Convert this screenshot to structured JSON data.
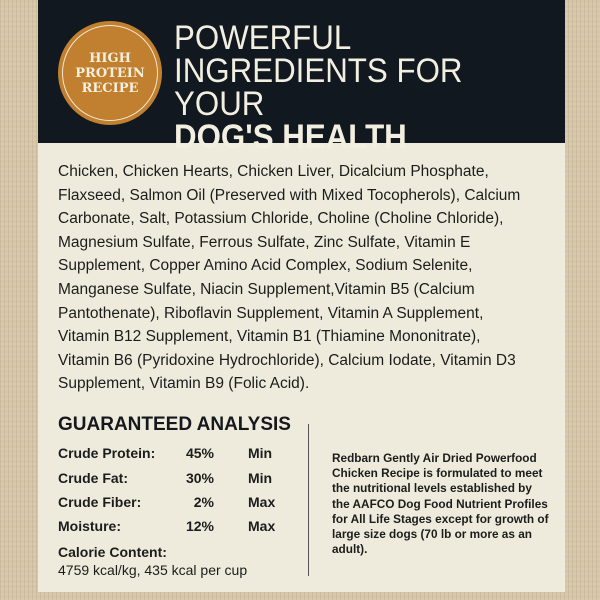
{
  "badge": {
    "text": "HIGH\nPROTEIN\nRECIPE",
    "color": "#c0802f"
  },
  "title": {
    "line1": "POWERFUL",
    "line2": "INGREDIENTS FOR YOUR",
    "line3": "DOG'S HEALTH"
  },
  "ingredients": [
    "Chicken, Chicken Hearts, Chicken Liver, Dicalcium Phosphate,",
    "Flaxseed, Salmon Oil (Preserved with Mixed Tocopherols), Calcium",
    "Carbonate, Salt, Potassium Chloride, Choline (Choline Chloride),",
    "Magnesium Sulfate, Ferrous Sulfate, Zinc Sulfate, Vitamin E",
    "Supplement, Copper Amino Acid Complex, Sodium Selenite,",
    "Manganese Sulfate, Niacin Supplement,Vitamin B5 (Calcium",
    "Pantothenate), Riboflavin Supplement, Vitamin A Supplement,",
    "Vitamin B12 Supplement, Vitamin B1 (Thiamine Mononitrate),",
    "Vitamin B6 (Pyridoxine Hydrochloride), Calcium Iodate, Vitamin D3",
    "Supplement, Vitamin B9 (Folic Acid)."
  ],
  "analysis": {
    "title": "GUARANTEED ANALYSIS",
    "rows": [
      {
        "label": "Crude Protein:",
        "value": "45%",
        "unit": "Min"
      },
      {
        "label": "Crude Fat:",
        "value": "30%",
        "unit": "Min"
      },
      {
        "label": "Crude Fiber:",
        "value": "2%",
        "unit": "Max"
      },
      {
        "label": "Moisture:",
        "value": "12%",
        "unit": "Max"
      }
    ],
    "calorie_label": "Calorie Content:",
    "calorie_value": "4759 kcal/kg, 435 kcal per cup"
  },
  "note": "Redbarn Gently Air Dried Powerfood Chicken Recipe is formulated to meet the nutritional levels established by the AAFCO Dog Food Nutrient Profiles for All Life Stages except for growth of large size dogs (70 lb or more as an adult)."
}
